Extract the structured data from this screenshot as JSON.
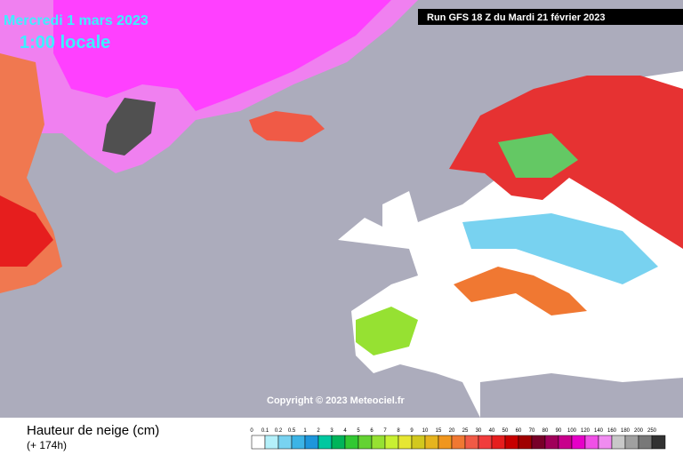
{
  "header": {
    "date": "Mercredi 1 mars 2023",
    "time": "1:00 locale",
    "run": "Run GFS 18 Z du Mardi 21 février 2023",
    "copyright": "Copyright © 2023 Meteociel.fr"
  },
  "footer": {
    "title": "Hauteur de neige (cm)",
    "lead": "(+ 174h)"
  },
  "legend": {
    "labels": [
      "0",
      "0.1",
      "0.2",
      "0.5",
      "1",
      "2",
      "3",
      "4",
      "5",
      "6",
      "7",
      "8",
      "9",
      "10",
      "15",
      "20",
      "25",
      "30",
      "40",
      "50",
      "60",
      "70",
      "80",
      "90",
      "100",
      "120",
      "140",
      "160",
      "180",
      "200",
      "250"
    ],
    "colors": [
      "#ffffff",
      "#b4f0fa",
      "#78d2f0",
      "#3cb4e6",
      "#1e96dc",
      "#00c8a0",
      "#00b45a",
      "#32c832",
      "#64d232",
      "#96e132",
      "#c8f032",
      "#e6e632",
      "#d2c81e",
      "#e6b41e",
      "#f0961e",
      "#f07832",
      "#f05a46",
      "#f03c3c",
      "#e61e1e",
      "#c80000",
      "#a00000",
      "#780028",
      "#a0005a",
      "#c8008c",
      "#e600c8",
      "#f050e6",
      "#f08cf0",
      "#c8c8c8",
      "#a0a0a0",
      "#787878",
      "#323232"
    ]
  }
}
